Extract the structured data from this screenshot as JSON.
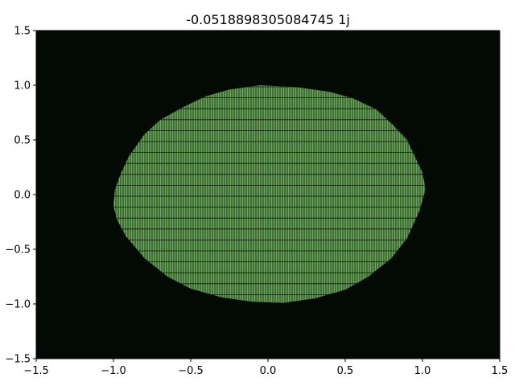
{
  "chart_data": {
    "type": "heatmap",
    "title": "-0.0518898305084745 1j",
    "xlabel": "",
    "ylabel": "",
    "xlim": [
      -1.5,
      1.5
    ],
    "ylim": [
      -1.5,
      1.5
    ],
    "xticks": [
      -1.5,
      -1.0,
      -0.5,
      0.0,
      0.5,
      1.0,
      1.5
    ],
    "yticks": [
      -1.5,
      -1.0,
      -0.5,
      0.0,
      0.5,
      1.0,
      1.5
    ],
    "xtick_labels": [
      "−1.5",
      "−1.0",
      "−0.5",
      "0.0",
      "0.5",
      "1.0",
      "1.5"
    ],
    "ytick_labels": [
      "−1.5",
      "−1.0",
      "−0.5",
      "0.0",
      "0.5",
      "1.0",
      "1.5"
    ],
    "grid": false,
    "background_color": "#030a03",
    "fill_color": "#6aa85a",
    "grid_line_color": "#0b1a0b",
    "region_boundary": {
      "x": [
        -0.05,
        0.2,
        0.4,
        0.55,
        0.7,
        0.8,
        0.9,
        0.95,
        1.0,
        1.02,
        0.98,
        0.9,
        0.8,
        0.65,
        0.5,
        0.3,
        0.1,
        -0.1,
        -0.3,
        -0.5,
        -0.65,
        -0.8,
        -0.92,
        -0.98,
        -1.0,
        -0.99,
        -0.95,
        -0.9,
        -0.8,
        -0.7,
        -0.55,
        -0.4,
        -0.25
      ],
      "y": [
        1.0,
        0.98,
        0.94,
        0.88,
        0.78,
        0.65,
        0.5,
        0.35,
        0.2,
        0.05,
        -0.15,
        -0.4,
        -0.58,
        -0.75,
        -0.87,
        -0.95,
        -0.99,
        -0.98,
        -0.94,
        -0.86,
        -0.75,
        -0.58,
        -0.38,
        -0.22,
        -0.1,
        0.05,
        0.2,
        0.35,
        0.55,
        0.68,
        0.8,
        0.9,
        0.96
      ]
    }
  }
}
